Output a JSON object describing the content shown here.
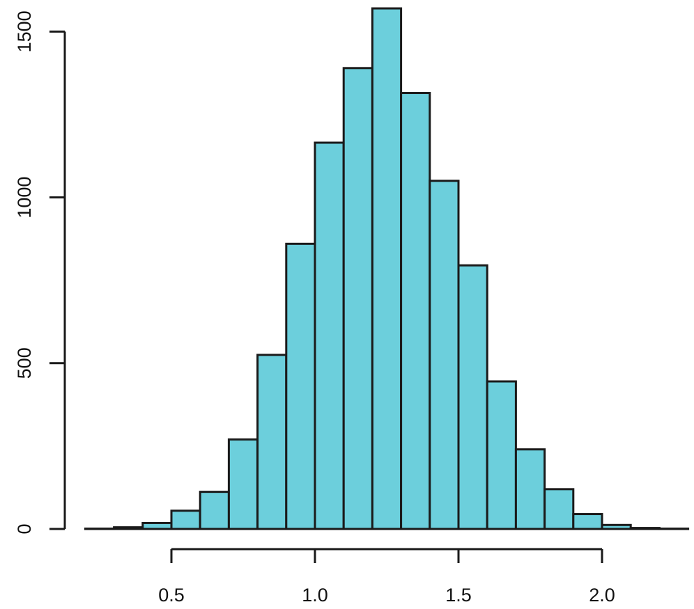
{
  "chart_data": {
    "type": "bar",
    "subtype": "histogram",
    "title": "",
    "xlabel": "",
    "ylabel": "",
    "bin_width": 0.1,
    "bins": [
      {
        "start": 0.2,
        "end": 0.3,
        "count": 1
      },
      {
        "start": 0.3,
        "end": 0.4,
        "count": 5
      },
      {
        "start": 0.4,
        "end": 0.5,
        "count": 18
      },
      {
        "start": 0.5,
        "end": 0.6,
        "count": 55
      },
      {
        "start": 0.6,
        "end": 0.7,
        "count": 112
      },
      {
        "start": 0.7,
        "end": 0.8,
        "count": 270
      },
      {
        "start": 0.8,
        "end": 0.9,
        "count": 525
      },
      {
        "start": 0.9,
        "end": 1.0,
        "count": 860
      },
      {
        "start": 1.0,
        "end": 1.1,
        "count": 1165
      },
      {
        "start": 1.1,
        "end": 1.2,
        "count": 1390
      },
      {
        "start": 1.2,
        "end": 1.3,
        "count": 1570
      },
      {
        "start": 1.3,
        "end": 1.4,
        "count": 1315
      },
      {
        "start": 1.4,
        "end": 1.5,
        "count": 1050
      },
      {
        "start": 1.5,
        "end": 1.6,
        "count": 795
      },
      {
        "start": 1.6,
        "end": 1.7,
        "count": 445
      },
      {
        "start": 1.7,
        "end": 1.8,
        "count": 240
      },
      {
        "start": 1.8,
        "end": 1.9,
        "count": 120
      },
      {
        "start": 1.9,
        "end": 2.0,
        "count": 45
      },
      {
        "start": 2.0,
        "end": 2.1,
        "count": 12
      },
      {
        "start": 2.1,
        "end": 2.2,
        "count": 3
      },
      {
        "start": 2.2,
        "end": 2.3,
        "count": 1
      }
    ],
    "xlim": [
      0.2,
      2.3
    ],
    "ylim": [
      0,
      1600
    ],
    "x_ticks": [
      0.5,
      1.0,
      1.5,
      2.0
    ],
    "x_tick_labels": [
      "0.5",
      "1.0",
      "1.5",
      "2.0"
    ],
    "y_ticks": [
      0,
      500,
      1000,
      1500
    ],
    "y_tick_labels": [
      "0",
      "500",
      "1000",
      "1500"
    ],
    "grid": false,
    "legend": "none",
    "bar_color": "#6ccfdc",
    "edge_color": "#1a1a1a"
  }
}
